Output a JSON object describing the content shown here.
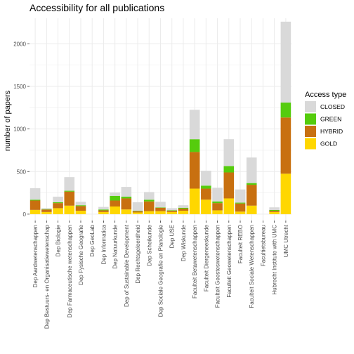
{
  "chart_data": {
    "type": "bar",
    "stacked": true,
    "title": "Accessibility for all publications",
    "xlabel": "",
    "ylabel": "number of papers",
    "ylim": [
      -75,
      2300
    ],
    "yticks": [
      0,
      500,
      1000,
      1500,
      2000
    ],
    "grid": true,
    "legend": {
      "title": "Access type",
      "placement": "right"
    },
    "categories": [
      "Dep Aardwetenschappen",
      "Dep Bestuurs- en Organisatiewetenschap",
      "Dep Biologie",
      "Dep Farmaceutische wetenschappen",
      "Dep Fysische Geografie",
      "Dep GeoLab",
      "Dep Informatica",
      "Dep Natuurkunde",
      "Dep of Sustainable Development",
      "Dep Rechtsgeleerdheid",
      "Dep Scheikunde",
      "Dep Sociale Geografie en Planologie",
      "Dep USE",
      "Dep Wiskunde",
      "Faculteit Betawetenschappen",
      "Faculteit Diergeneeskunde",
      "Faculteit Geesteswetenschappen",
      "Faculteit Geowetenschappen",
      "Faculteit REBO",
      "Faculteit Sociale Wetenschappen",
      "Facultietsbureau",
      "Hubrecht Institute with UMC",
      "UMC Utrecht"
    ],
    "series": [
      {
        "name": "GOLD",
        "color": "#ffd700",
        "values": [
          50,
          25,
          70,
          100,
          40,
          0,
          25,
          90,
          55,
          20,
          35,
          35,
          25,
          40,
          300,
          170,
          45,
          185,
          30,
          100,
          0,
          25,
          475
        ]
      },
      {
        "name": "HYBRID",
        "color": "#c87010",
        "values": [
          110,
          30,
          60,
          165,
          55,
          0,
          20,
          70,
          130,
          15,
          115,
          40,
          15,
          25,
          430,
          130,
          85,
          305,
          95,
          245,
          0,
          15,
          660
        ]
      },
      {
        "name": "GREEN",
        "color": "#55cc0d",
        "values": [
          10,
          5,
          10,
          10,
          10,
          0,
          10,
          55,
          20,
          5,
          20,
          5,
          5,
          10,
          150,
          35,
          20,
          75,
          10,
          20,
          0,
          10,
          175
        ]
      },
      {
        "name": "CLOSED",
        "color": "#d9d9d9",
        "values": [
          135,
          10,
          65,
          160,
          40,
          0,
          30,
          40,
          115,
          100,
          90,
          65,
          25,
          30,
          345,
          175,
          160,
          315,
          155,
          300,
          0,
          30,
          950
        ]
      }
    ]
  }
}
